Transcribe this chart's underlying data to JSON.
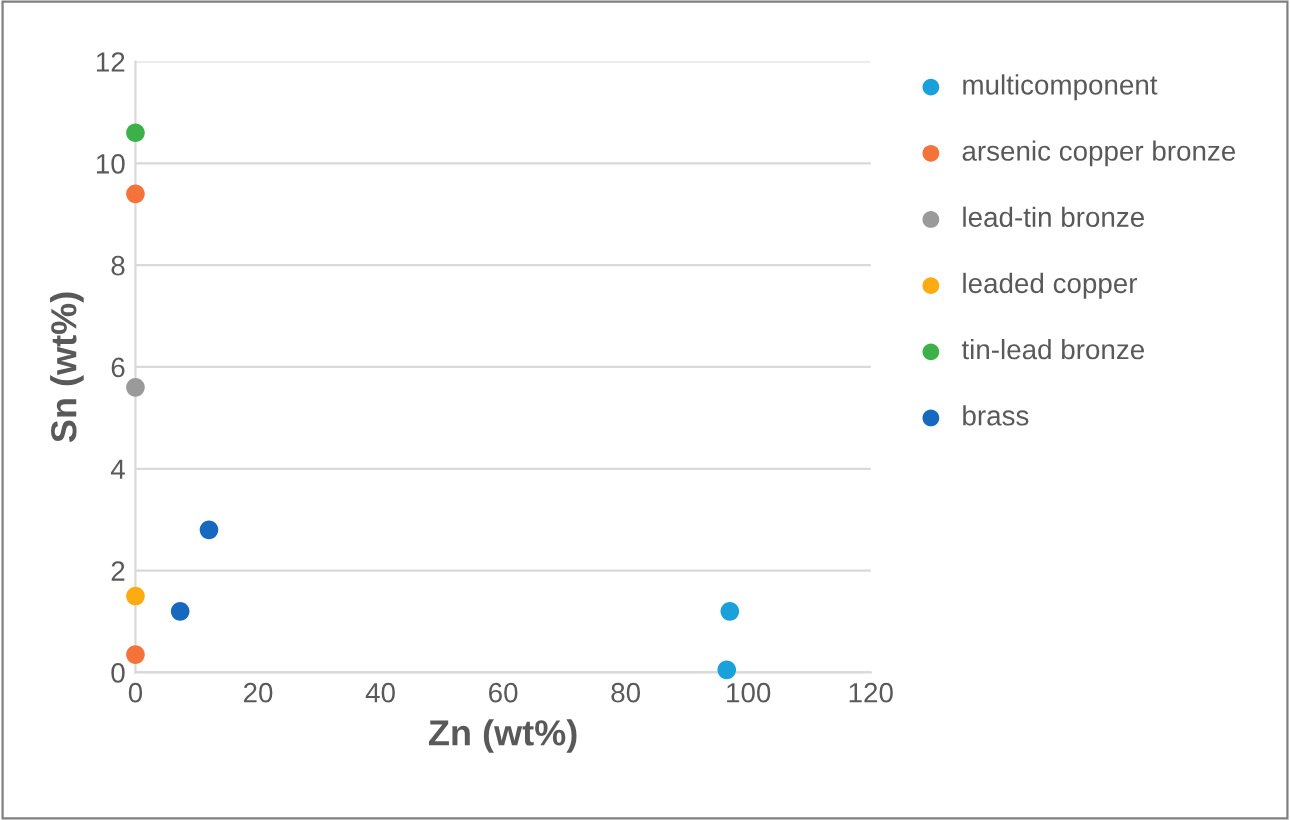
{
  "chart_data": {
    "type": "scatter",
    "xlabel": "Zn (wt%)",
    "ylabel": "Sn (wt%)",
    "xlim": [
      0,
      120
    ],
    "xticks": [
      0,
      20,
      40,
      60,
      80,
      100,
      120
    ],
    "ylim": [
      0,
      12
    ],
    "yticks": [
      0,
      2,
      4,
      6,
      8,
      10,
      12
    ],
    "grid": "y",
    "legend": "right",
    "marker": "circle",
    "series": [
      {
        "name": "multicomponent",
        "color": "#1aa1db",
        "x": [
          97,
          96.5
        ],
        "values": [
          1.2,
          0.05
        ]
      },
      {
        "name": "arsenic copper bronze",
        "color": "#f4733a",
        "x": [
          0,
          0
        ],
        "values": [
          9.4,
          0.35
        ]
      },
      {
        "name": "lead-tin bronze",
        "color": "#9a9a9a",
        "x": [
          0
        ],
        "values": [
          5.6
        ]
      },
      {
        "name": "leaded copper",
        "color": "#fdab13",
        "x": [
          0
        ],
        "values": [
          1.5
        ]
      },
      {
        "name": "tin-lead bronze",
        "color": "#3cb14a",
        "x": [
          0
        ],
        "values": [
          10.6
        ]
      },
      {
        "name": "brass",
        "color": "#1669bf",
        "x": [
          7.3,
          12
        ],
        "values": [
          1.2,
          2.8
        ]
      }
    ]
  }
}
